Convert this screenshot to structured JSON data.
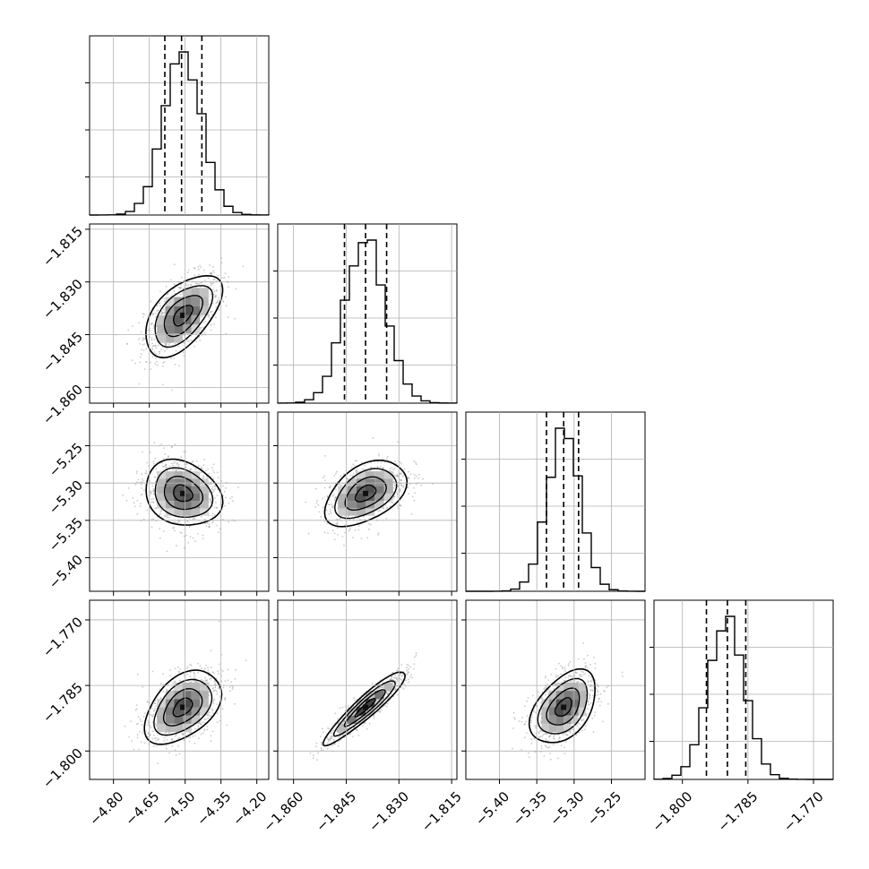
{
  "chart_data": {
    "type": "corner",
    "title": "",
    "grid": true,
    "parameters": [
      {
        "range": [
          -4.9,
          -4.15
        ],
        "ticks": [
          "−4.80",
          "−4.65",
          "−4.50",
          "−4.35",
          "−4.20"
        ],
        "tick_values": [
          -4.8,
          -4.65,
          -4.5,
          -4.35,
          -4.2
        ],
        "quantiles": [
          -4.585,
          -4.515,
          -4.43
        ],
        "mean": -4.51,
        "sd": 0.08
      },
      {
        "range": [
          -1.8645,
          -1.8135
        ],
        "ticks": [
          "−1.815",
          "−1.830",
          "−1.845",
          "−1.860"
        ],
        "tick_values": [
          -1.815,
          -1.83,
          -1.845,
          -1.86
        ],
        "x_ticks": [
          "−1.860",
          "−1.845",
          "−1.830",
          "−1.815"
        ],
        "x_tick_values": [
          -1.86,
          -1.845,
          -1.83,
          -1.815
        ],
        "quantiles": [
          -1.8455,
          -1.8395,
          -1.8335
        ],
        "mean": -1.8395,
        "sd": 0.0058
      },
      {
        "range": [
          -5.445,
          -5.205
        ],
        "ticks": [
          "−5.25",
          "−5.30",
          "−5.35",
          "−5.40"
        ],
        "tick_values": [
          -5.25,
          -5.3,
          -5.35,
          -5.4
        ],
        "x_ticks": [
          "−5.40",
          "−5.35",
          "−5.30",
          "−5.25"
        ],
        "x_tick_values": [
          -5.4,
          -5.35,
          -5.3,
          -5.25
        ],
        "quantiles": [
          -5.337,
          -5.314,
          -5.294
        ],
        "mean": -5.314,
        "sd": 0.022
      },
      {
        "range": [
          -1.8065,
          -1.7655
        ],
        "ticks": [
          "−1.770",
          "−1.785",
          "−1.800"
        ],
        "tick_values": [
          -1.77,
          -1.785,
          -1.8
        ],
        "x_ticks": [
          "−1.800",
          "−1.785",
          "−1.770"
        ],
        "x_tick_values": [
          -1.8,
          -1.785,
          -1.77
        ],
        "quantiles": [
          -1.7945,
          -1.7897,
          -1.7855
        ],
        "mean": -1.79,
        "sd": 0.0042
      }
    ],
    "correlations": {
      "1-0": 0.55,
      "2-0": -0.2,
      "2-1": 0.45,
      "3-0": 0.45,
      "3-1": 0.93,
      "3-2": 0.45
    },
    "histogram_bins": 20,
    "contour_levels": [
      0.5,
      1.0,
      1.5,
      2.0
    ],
    "colors": {
      "line": "#000000",
      "grid": "#b0b0b0",
      "points": "#9e9e9e"
    }
  }
}
